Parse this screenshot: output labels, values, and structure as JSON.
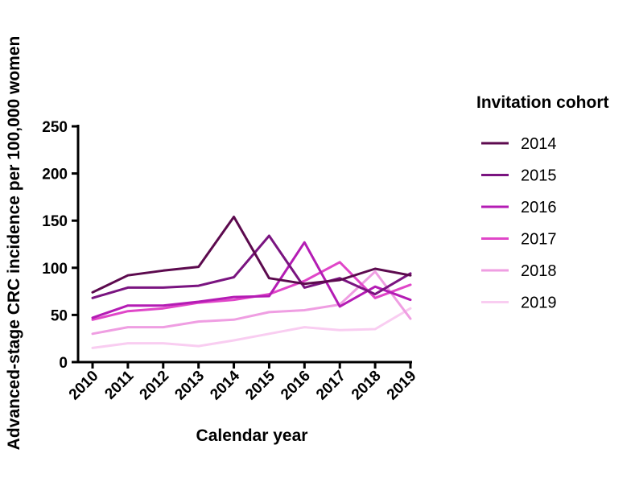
{
  "chart_data": {
    "type": "line",
    "xlabel": "Calendar year",
    "ylabel": "Advanced-stage CRC incidence per 100,000 women",
    "ylim": [
      0,
      250
    ],
    "yticks": [
      "0",
      "50",
      "100",
      "150",
      "200",
      "250"
    ],
    "categories": [
      "2010",
      "2011",
      "2012",
      "2013",
      "2014",
      "2015",
      "2016",
      "2017",
      "2018",
      "2019"
    ],
    "legend_title": "Invitation cohort",
    "legend_position": "right",
    "grid": false,
    "series": [
      {
        "name": "2014",
        "color": "#5c0a4e",
        "values": [
          74,
          92,
          97,
          101,
          154,
          89,
          83,
          87,
          99,
          92
        ]
      },
      {
        "name": "2015",
        "color": "#7a1480",
        "values": [
          68,
          79,
          79,
          81,
          90,
          134,
          79,
          89,
          72,
          94
        ]
      },
      {
        "name": "2016",
        "color": "#b41cb4",
        "values": [
          47,
          60,
          60,
          64,
          69,
          70,
          127,
          59,
          80,
          66
        ]
      },
      {
        "name": "2017",
        "color": "#e046c8",
        "values": [
          45,
          54,
          57,
          63,
          66,
          72,
          86,
          106,
          68,
          82
        ]
      },
      {
        "name": "2018",
        "color": "#ef9ee2",
        "values": [
          30,
          37,
          37,
          43,
          45,
          53,
          55,
          61,
          96,
          46
        ]
      },
      {
        "name": "2019",
        "color": "#f9cdf1",
        "values": [
          15,
          20,
          20,
          17,
          23,
          30,
          37,
          34,
          35,
          57
        ]
      }
    ]
  }
}
